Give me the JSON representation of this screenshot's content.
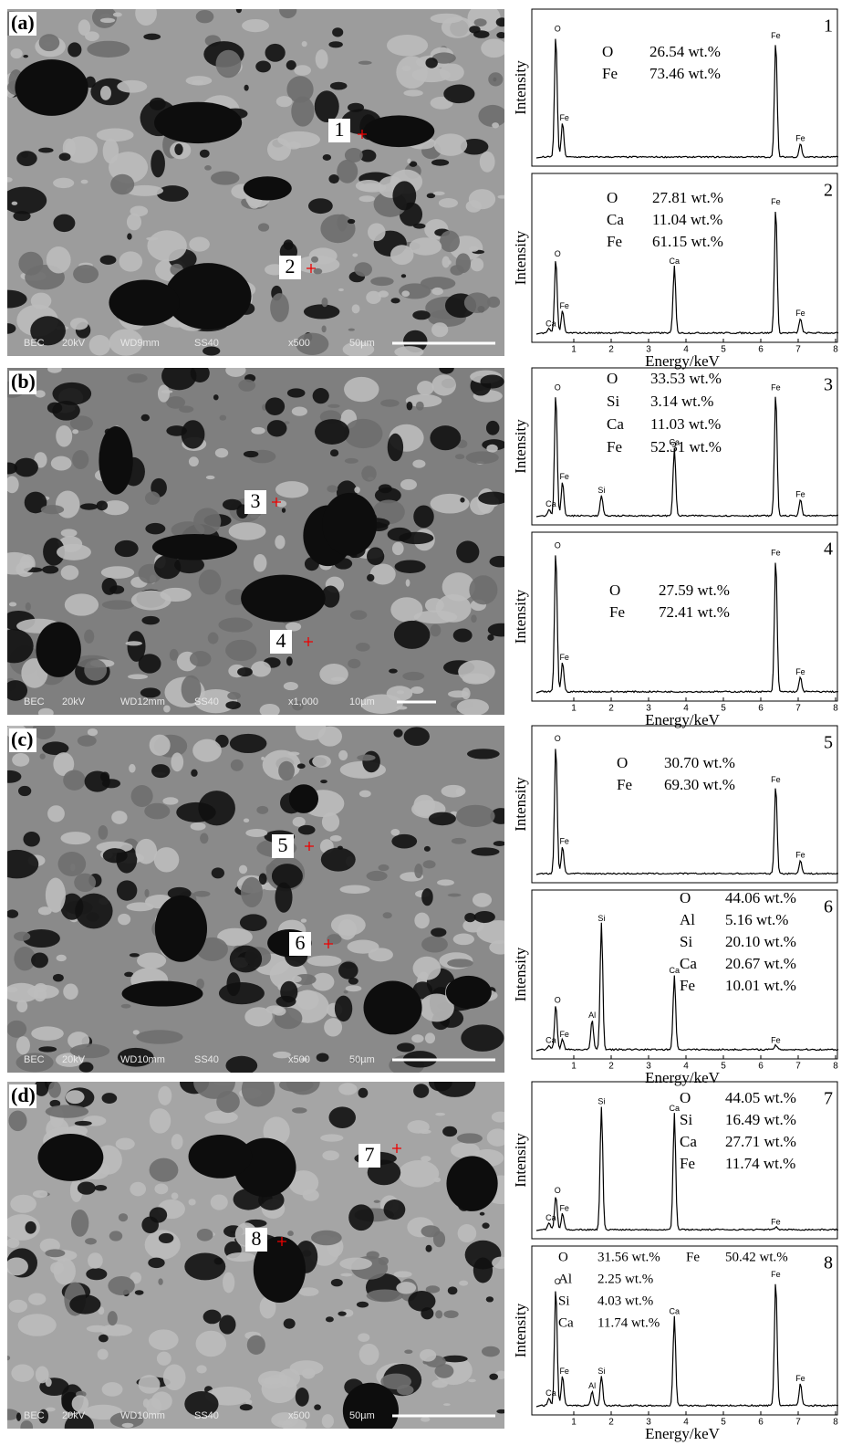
{
  "panels": [
    {
      "label": "(a)",
      "image": {
        "info": [
          "BEC",
          "20kV",
          "WD9mm",
          "SS40",
          "x500",
          "50µm"
        ],
        "points": [
          "1",
          "2"
        ]
      },
      "spectra": [
        {
          "number": "1",
          "composition": [
            [
              "O",
              "26.54 wt.%"
            ],
            [
              "Fe",
              "73.46 wt.%"
            ]
          ],
          "peaks": [
            "O",
            "Fe",
            "Fe",
            "Fe"
          ]
        },
        {
          "number": "2",
          "composition": [
            [
              "O",
              "27.81 wt.%"
            ],
            [
              "Ca",
              "11.04 wt.%"
            ],
            [
              "Fe",
              "61.15 wt.%"
            ]
          ],
          "peaks": [
            "Ca",
            "O",
            "Fe",
            "Ca",
            "Fe",
            "Fe"
          ]
        }
      ]
    },
    {
      "label": "(b)",
      "image": {
        "info": [
          "BEC",
          "20kV",
          "WD12mm",
          "SS40",
          "x1,000",
          "10µm"
        ],
        "points": [
          "3",
          "4"
        ]
      },
      "spectra": [
        {
          "number": "3",
          "composition": [
            [
              "O",
              "33.53 wt.%"
            ],
            [
              "Si",
              "3.14 wt.%"
            ],
            [
              "Ca",
              "11.03 wt.%"
            ],
            [
              "Fe",
              "52.31 wt.%"
            ]
          ],
          "peaks": [
            "Ca",
            "O",
            "Fe",
            "Si",
            "Ca",
            "Fe",
            "Fe"
          ]
        },
        {
          "number": "4",
          "composition": [
            [
              "O",
              "27.59 wt.%"
            ],
            [
              "Fe",
              "72.41 wt.%"
            ]
          ],
          "peaks": [
            "O",
            "Fe",
            "Fe",
            "Fe"
          ]
        }
      ]
    },
    {
      "label": "(c)",
      "image": {
        "info": [
          "BEC",
          "20kV",
          "WD10mm",
          "SS40",
          "x500",
          "50µm"
        ],
        "points": [
          "5",
          "6"
        ]
      },
      "spectra": [
        {
          "number": "5",
          "composition": [
            [
              "O",
              "30.70 wt.%"
            ],
            [
              "Fe",
              "69.30 wt.%"
            ]
          ],
          "peaks": [
            "O",
            "Fe",
            "Fe",
            "Fe"
          ]
        },
        {
          "number": "6",
          "composition": [
            [
              "O",
              "44.06 wt.%"
            ],
            [
              "Al",
              "5.16 wt.%"
            ],
            [
              "Si",
              "20.10 wt.%"
            ],
            [
              "Ca",
              "20.67 wt.%"
            ],
            [
              "Fe",
              "10.01 wt.%"
            ]
          ],
          "peaks": [
            "Ca",
            "O",
            "Al",
            "Si",
            "Ca",
            "Fe",
            "Fe"
          ]
        }
      ]
    },
    {
      "label": "(d)",
      "image": {
        "info": [
          "BEC",
          "20kV",
          "WD10mm",
          "SS40",
          "x500",
          "50µm"
        ],
        "points": [
          "7",
          "8"
        ]
      },
      "spectra": [
        {
          "number": "7",
          "composition": [
            [
              "O",
              "44.05 wt.%"
            ],
            [
              "Si",
              "16.49 wt.%"
            ],
            [
              "Ca",
              "27.71 wt.%"
            ],
            [
              "Fe",
              "11.74 wt.%"
            ]
          ],
          "peaks": [
            "Ca",
            "O",
            "Si",
            "Ca",
            "Fe",
            "Fe"
          ]
        },
        {
          "number": "8",
          "composition": [
            [
              "O",
              "31.56 wt.%",
              "Fe",
              "50.42 wt.%"
            ],
            [
              "Al",
              "2.25 wt.%"
            ],
            [
              "Si",
              "4.03 wt.%"
            ],
            [
              "Ca",
              "11.74 wt.%"
            ]
          ],
          "peaks": [
            "Ca",
            "O",
            "Fe",
            "Al",
            "Si",
            "Ca",
            "Fe",
            "Fe"
          ]
        }
      ]
    }
  ],
  "axis": {
    "y_label": "Intensity",
    "x_label": "Energy/keV",
    "ticks": [
      "1",
      "2",
      "3",
      "4",
      "5",
      "6",
      "7",
      "8"
    ]
  }
}
